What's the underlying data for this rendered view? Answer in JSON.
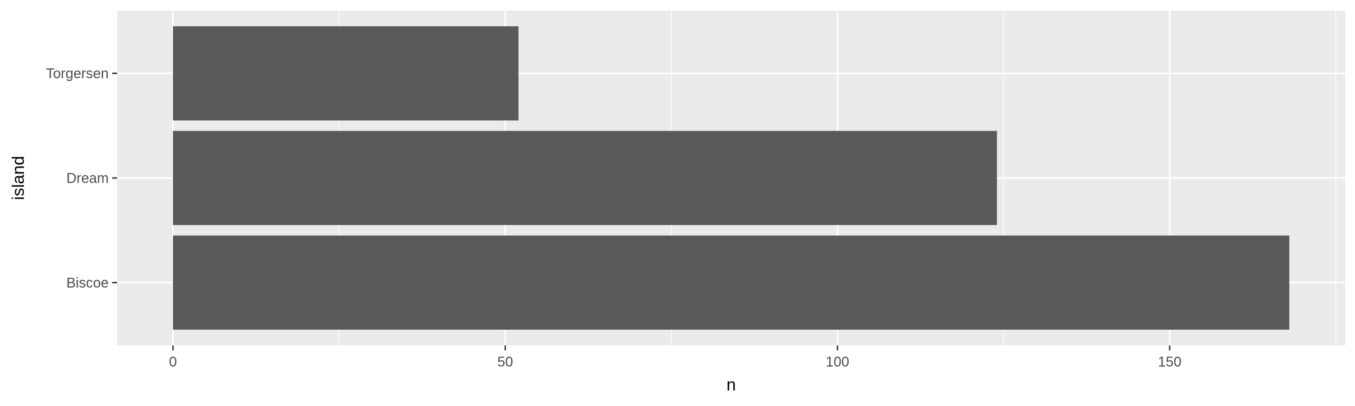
{
  "chart_data": {
    "type": "bar",
    "orientation": "horizontal",
    "categories": [
      "Biscoe",
      "Dream",
      "Torgersen"
    ],
    "values": [
      168,
      124,
      52
    ],
    "xlabel": "n",
    "ylabel": "island",
    "xlim": [
      -8.4,
      176.4
    ],
    "xticks": [
      0,
      50,
      100,
      150
    ],
    "xtick_labels": [
      "0",
      "50",
      "100",
      "150"
    ],
    "grid": true,
    "colors": {
      "panel": "#EBEBEB",
      "grid": "#FFFFFF",
      "bar": "#595959",
      "tick_text": "#4D4D4D",
      "tick_line": "#333333"
    }
  }
}
